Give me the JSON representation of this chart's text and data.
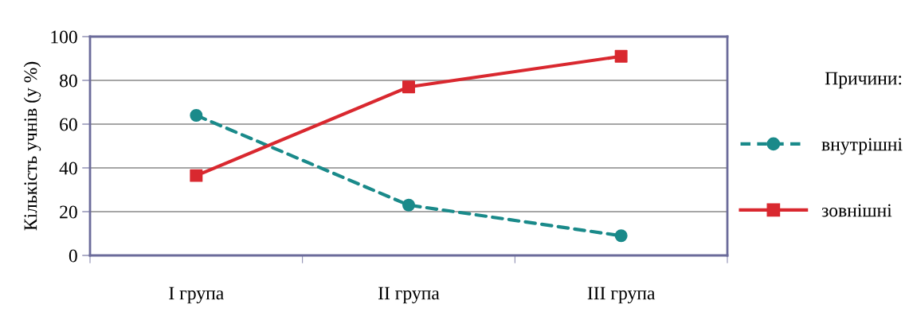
{
  "chart_data": {
    "type": "line",
    "ylabel": "Кількість учнів (у %)",
    "legend_title": "Причини:",
    "categories": [
      "I група",
      "II група",
      "III група"
    ],
    "series": [
      {
        "name": "внутрішні",
        "color": "#1a8a8a",
        "marker": "circle",
        "line_style": "dashed",
        "values": [
          64,
          23,
          9
        ]
      },
      {
        "name": "зовнішні",
        "color": "#d9282f",
        "marker": "square",
        "line_style": "solid",
        "values": [
          36.5,
          77,
          91
        ]
      }
    ],
    "ylim": [
      0,
      100
    ],
    "yticks": [
      0,
      20,
      40,
      60,
      80,
      100
    ],
    "grid": "y",
    "legend": "right"
  }
}
